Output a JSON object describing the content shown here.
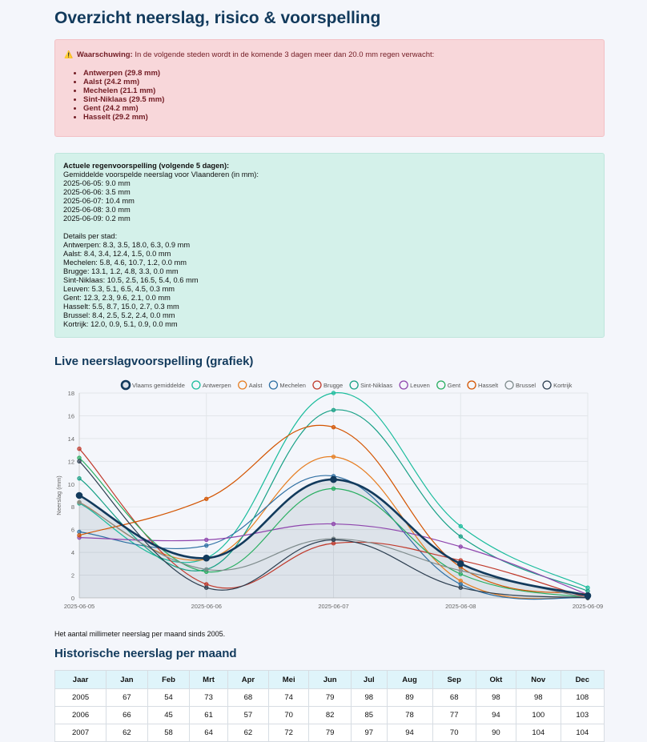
{
  "page_title": "Overzicht neerslag, risico & voorspelling",
  "alert": {
    "label": "Waarschuwing:",
    "text": " In de volgende steden wordt in de komende 3 dagen meer dan 20.0 mm regen verwacht:",
    "items": [
      "Antwerpen (29.8 mm)",
      "Aalst (24.2 mm)",
      "Mechelen (21.1 mm)",
      "Sint-Niklaas (29.5 mm)",
      "Gent (24.2 mm)",
      "Hasselt (29.2 mm)"
    ]
  },
  "forecast": {
    "heading": "Actuele regenvoorspelling (volgende 5 dagen):",
    "subheading": "Gemiddelde voorspelde neerslag voor Vlaanderen (in mm):",
    "daily": [
      "2025-06-05: 9.0 mm",
      "2025-06-06: 3.5 mm",
      "2025-06-07: 10.4 mm",
      "2025-06-08: 3.0 mm",
      "2025-06-09: 0.2 mm"
    ],
    "details_heading": "Details per stad:",
    "details": [
      "Antwerpen: 8.3, 3.5, 18.0, 6.3, 0.9 mm",
      "Aalst: 8.4, 3.4, 12.4, 1.5, 0.0 mm",
      "Mechelen: 5.8, 4.6, 10.7, 1.2, 0.0 mm",
      "Brugge: 13.1, 1.2, 4.8, 3.3, 0.0 mm",
      "Sint-Niklaas: 10.5, 2.5, 16.5, 5.4, 0.6 mm",
      "Leuven: 5.3, 5.1, 6.5, 4.5, 0.3 mm",
      "Gent: 12.3, 2.3, 9.6, 2.1, 0.0 mm",
      "Hasselt: 5.5, 8.7, 15.0, 2.7, 0.3 mm",
      "Brussel: 8.4, 2.5, 5.2, 2.4, 0.0 mm",
      "Kortrijk: 12.0, 0.9, 5.1, 0.9, 0.0 mm"
    ]
  },
  "chart_heading": "Live neerslagvoorspelling (grafiek)",
  "chart_data": {
    "type": "line",
    "x": [
      "2025-06-05",
      "2025-06-06",
      "2025-06-07",
      "2025-06-08",
      "2025-06-09"
    ],
    "ylabel": "Neerslag (mm)",
    "ylim": [
      0,
      18
    ],
    "yticks": [
      "0",
      "2",
      "4",
      "6",
      "8",
      "10",
      "12",
      "14",
      "16",
      "18"
    ],
    "legend_position": "top",
    "grid": true,
    "series": [
      {
        "name": "Vlaams gemiddelde",
        "color": "#123a5c",
        "values": [
          9.0,
          3.5,
          10.4,
          3.0,
          0.2
        ],
        "fill": true
      },
      {
        "name": "Antwerpen",
        "color": "#1abc9c",
        "values": [
          8.3,
          3.5,
          18.0,
          6.3,
          0.9
        ]
      },
      {
        "name": "Aalst",
        "color": "#e67e22",
        "values": [
          8.4,
          3.4,
          12.4,
          1.5,
          0.0
        ]
      },
      {
        "name": "Mechelen",
        "color": "#2e6fa3",
        "values": [
          5.8,
          4.6,
          10.7,
          1.2,
          0.0
        ]
      },
      {
        "name": "Brugge",
        "color": "#c0392b",
        "values": [
          13.1,
          1.2,
          4.8,
          3.3,
          0.0
        ]
      },
      {
        "name": "Sint-Niklaas",
        "color": "#16a085",
        "values": [
          10.5,
          2.5,
          16.5,
          5.4,
          0.6
        ]
      },
      {
        "name": "Leuven",
        "color": "#8e44ad",
        "values": [
          5.3,
          5.1,
          6.5,
          4.5,
          0.3
        ]
      },
      {
        "name": "Gent",
        "color": "#27ae60",
        "values": [
          12.3,
          2.3,
          9.6,
          2.1,
          0.0
        ]
      },
      {
        "name": "Hasselt",
        "color": "#d35400",
        "values": [
          5.5,
          8.7,
          15.0,
          2.7,
          0.3
        ]
      },
      {
        "name": "Brussel",
        "color": "#7f8c8d",
        "values": [
          8.4,
          2.5,
          5.2,
          2.4,
          0.0
        ]
      },
      {
        "name": "Kortrijk",
        "color": "#2c3e50",
        "values": [
          12.0,
          0.9,
          5.1,
          0.9,
          0.0
        ]
      }
    ]
  },
  "note": "Het aantal millimeter neerslag per maand sinds 2005.",
  "history_heading": "Historische neerslag per maand",
  "history": {
    "columns": [
      "Jaar",
      "Jan",
      "Feb",
      "Mrt",
      "Apr",
      "Mei",
      "Jun",
      "Jul",
      "Aug",
      "Sep",
      "Okt",
      "Nov",
      "Dec"
    ],
    "rows": [
      [
        "2005",
        "67",
        "54",
        "73",
        "68",
        "74",
        "79",
        "98",
        "89",
        "68",
        "98",
        "98",
        "108"
      ],
      [
        "2006",
        "66",
        "45",
        "61",
        "57",
        "70",
        "82",
        "85",
        "78",
        "77",
        "94",
        "100",
        "103"
      ],
      [
        "2007",
        "62",
        "58",
        "64",
        "62",
        "72",
        "79",
        "97",
        "94",
        "70",
        "90",
        "104",
        "104"
      ]
    ]
  }
}
